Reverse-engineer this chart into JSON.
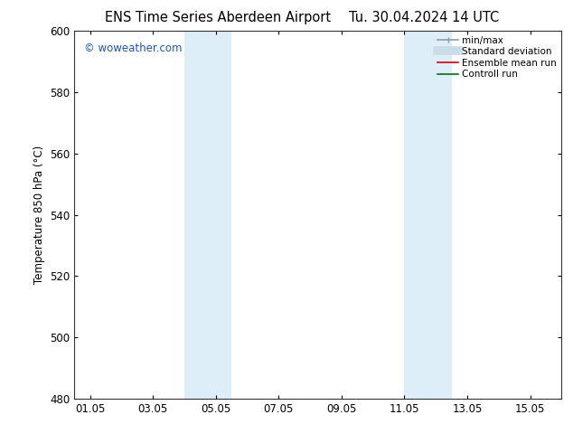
{
  "title_left": "ENS Time Series Aberdeen Airport",
  "title_right": "Tu. 30.04.2024 14 UTC",
  "ylabel": "Temperature 850 hPa (°C)",
  "xlim": [
    0.5,
    16.0
  ],
  "ylim": [
    480,
    600
  ],
  "yticks": [
    480,
    500,
    520,
    540,
    560,
    580,
    600
  ],
  "xtick_labels": [
    "01.05",
    "03.05",
    "05.05",
    "07.05",
    "09.05",
    "11.05",
    "13.05",
    "15.05"
  ],
  "xtick_positions": [
    1.0,
    3.0,
    5.0,
    7.0,
    9.0,
    11.0,
    13.0,
    15.0
  ],
  "shaded_bands": [
    {
      "x_start": 4.0,
      "x_end": 5.5
    },
    {
      "x_start": 11.0,
      "x_end": 12.5
    }
  ],
  "shade_color": "#ddeef8",
  "background_color": "#ffffff",
  "watermark_text": "© woweather.com",
  "watermark_color": "#1a55cc",
  "legend_items": [
    {
      "label": "min/max",
      "color": "#999999",
      "lw": 1.2,
      "style": "line_with_caps"
    },
    {
      "label": "Standard deviation",
      "color": "#c8dcea",
      "lw": 7,
      "style": "line"
    },
    {
      "label": "Ensemble mean run",
      "color": "#dd0000",
      "lw": 1.2,
      "style": "line"
    },
    {
      "label": "Controll run",
      "color": "#007700",
      "lw": 1.2,
      "style": "line"
    }
  ],
  "grid_color": "#cccccc",
  "tick_label_fontsize": 8.5,
  "axis_label_fontsize": 8.5,
  "title_fontsize": 10.5
}
